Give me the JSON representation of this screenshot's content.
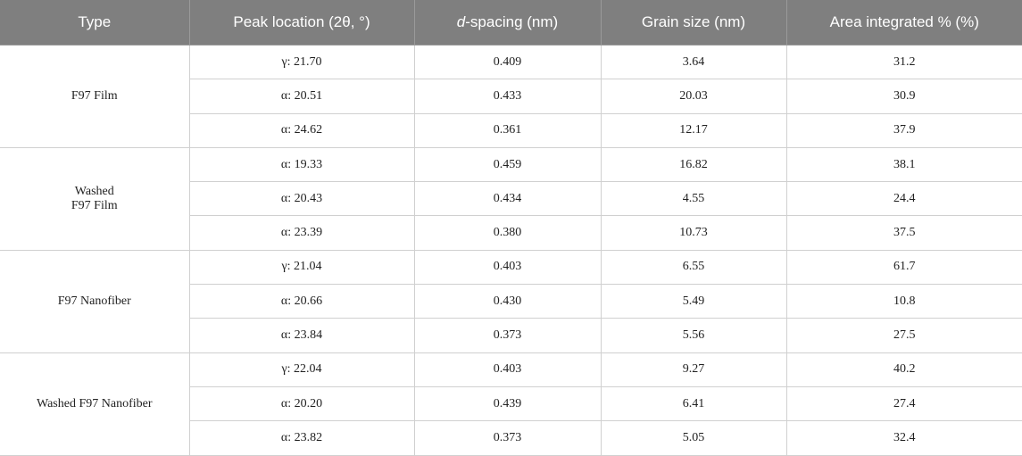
{
  "table": {
    "headers": [
      "Type",
      "Peak location (2θ, °)",
      {
        "italic": "d",
        "rest": "-spacing (nm)"
      },
      "Grain size (nm)",
      "Area integrated % (%)"
    ],
    "groups": [
      {
        "type": "F97 Film",
        "rows": [
          [
            "γ: 21.70",
            "0.409",
            "3.64",
            "31.2"
          ],
          [
            "α: 20.51",
            "0.433",
            "20.03",
            "30.9"
          ],
          [
            "α: 24.62",
            "0.361",
            "12.17",
            "37.9"
          ]
        ]
      },
      {
        "type": "Washed\nF97 Film",
        "rows": [
          [
            "α: 19.33",
            "0.459",
            "16.82",
            "38.1"
          ],
          [
            "α: 20.43",
            "0.434",
            "4.55",
            "24.4"
          ],
          [
            "α: 23.39",
            "0.380",
            "10.73",
            "37.5"
          ]
        ]
      },
      {
        "type": "F97 Nanofiber",
        "rows": [
          [
            "γ: 21.04",
            "0.403",
            "6.55",
            "61.7"
          ],
          [
            "α: 20.66",
            "0.430",
            "5.49",
            "10.8"
          ],
          [
            "α: 23.84",
            "0.373",
            "5.56",
            "27.5"
          ]
        ]
      },
      {
        "type": "Washed F97 Nanofiber",
        "rows": [
          [
            "γ: 22.04",
            "0.403",
            "9.27",
            "40.2"
          ],
          [
            "α: 20.20",
            "0.439",
            "6.41",
            "27.4"
          ],
          [
            "α: 23.82",
            "0.373",
            "5.05",
            "32.4"
          ]
        ]
      }
    ]
  }
}
